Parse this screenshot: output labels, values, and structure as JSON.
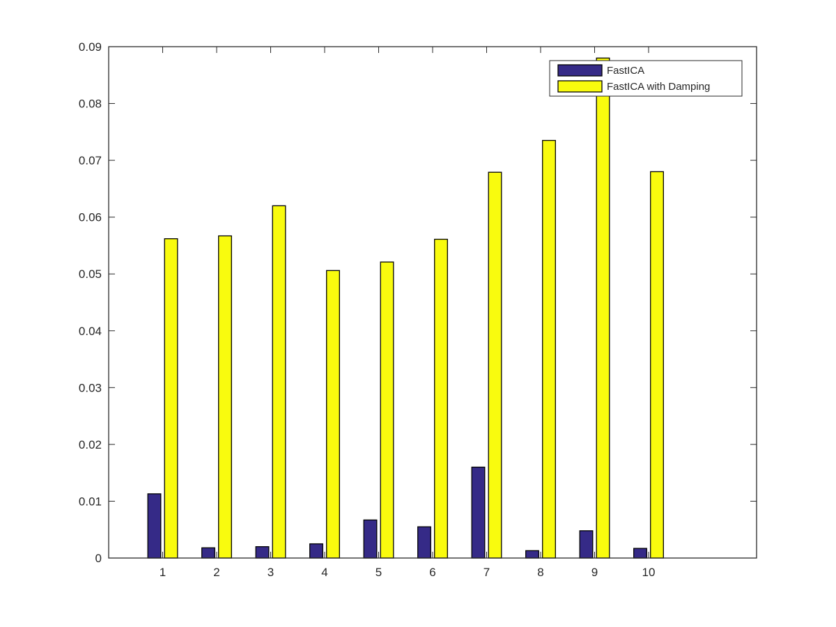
{
  "chart_data": {
    "type": "bar",
    "title": "",
    "xlabel": "",
    "ylabel": "",
    "categories": [
      "1",
      "2",
      "3",
      "4",
      "5",
      "6",
      "7",
      "8",
      "9",
      "10"
    ],
    "xlim": [
      0,
      12
    ],
    "ylim": [
      0,
      0.09
    ],
    "yticks": [
      "0",
      "0.01",
      "0.02",
      "0.03",
      "0.04",
      "0.05",
      "0.06",
      "0.07",
      "0.08",
      "0.09"
    ],
    "grid": false,
    "legend_position": "top-right",
    "series": [
      {
        "name": "FastICA",
        "color": "#352a87",
        "values": [
          0.0113,
          0.0018,
          0.002,
          0.0025,
          0.0067,
          0.0055,
          0.016,
          0.0013,
          0.0048,
          0.0017
        ]
      },
      {
        "name": "FastICA with Damping",
        "color": "#f9fb0e",
        "values": [
          0.0562,
          0.0567,
          0.062,
          0.0506,
          0.0521,
          0.0561,
          0.0679,
          0.0735,
          0.088,
          0.068
        ]
      }
    ]
  }
}
